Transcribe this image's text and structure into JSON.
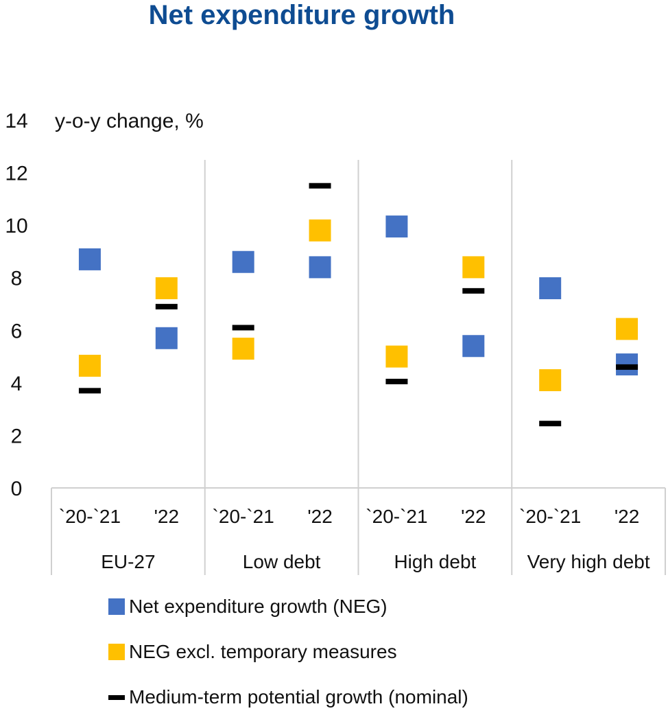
{
  "chart_data": {
    "type": "scatter",
    "title": "Net expenditure growth",
    "ylabel": "y-o-y change, %",
    "ylim": [
      0,
      14
    ],
    "yticks": [
      0,
      2,
      4,
      6,
      8,
      10,
      12,
      14
    ],
    "grid": false,
    "legend_position": "bottom",
    "groups": [
      "EU-27",
      "Low debt",
      "High debt",
      "Very high debt"
    ],
    "categories": [
      "`20-`21",
      "'22",
      "`20-`21",
      "'22",
      "`20-`21",
      "'22",
      "`20-`21",
      "'22"
    ],
    "series": [
      {
        "name": "Net expenditure growth (NEG)",
        "marker": "square",
        "color": "#4472C4",
        "values": [
          8.7,
          5.7,
          8.6,
          8.4,
          9.95,
          5.4,
          7.6,
          4.7
        ]
      },
      {
        "name": "NEG excl. temporary measures",
        "marker": "square",
        "color": "#FFC000",
        "values": [
          4.65,
          7.6,
          5.3,
          9.8,
          5.0,
          8.4,
          4.1,
          6.05
        ]
      },
      {
        "name": "Medium-term potential growth (nominal)",
        "marker": "dash",
        "color": "#000000",
        "values": [
          3.7,
          6.9,
          6.1,
          11.5,
          4.05,
          7.5,
          2.45,
          4.6
        ]
      }
    ]
  }
}
